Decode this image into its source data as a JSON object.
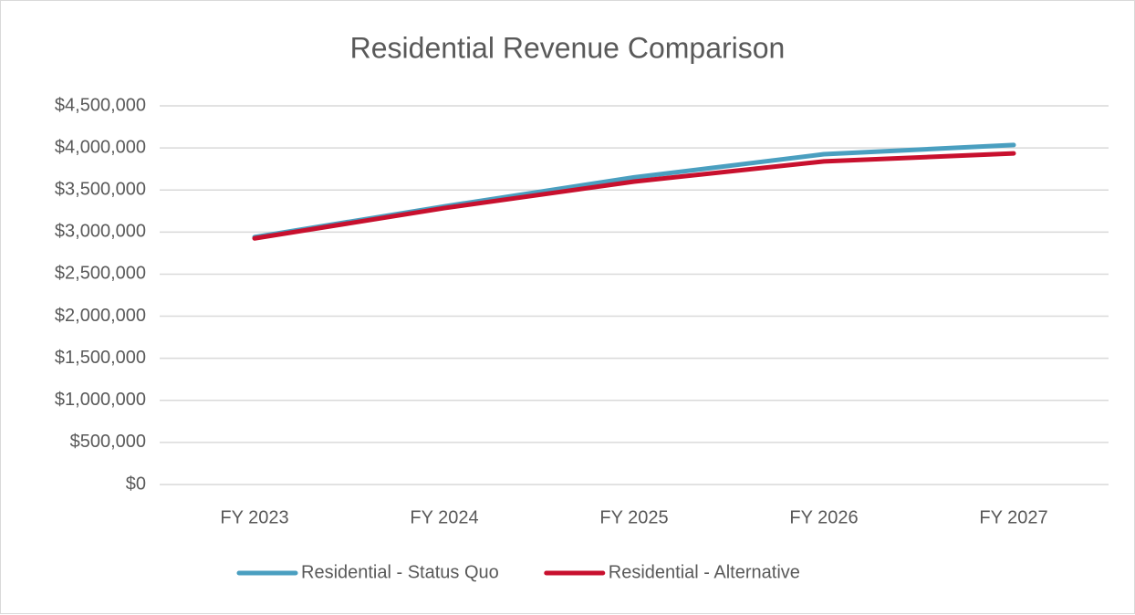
{
  "chart_data": {
    "type": "line",
    "title": "Residential Revenue Comparison",
    "categories": [
      "FY 2023",
      "FY 2024",
      "FY 2025",
      "FY 2026",
      "FY 2027"
    ],
    "series": [
      {
        "name": "Residential - Status Quo",
        "color": "#4a9fc0",
        "values": [
          2940000,
          3305000,
          3650000,
          3925000,
          4035000
        ]
      },
      {
        "name": "Residential - Alternative",
        "color": "#c8102e",
        "values": [
          2925000,
          3285000,
          3600000,
          3840000,
          3935000
        ]
      }
    ],
    "ylim": [
      0,
      4500000
    ],
    "yticks": [
      {
        "value": 0,
        "label": "$0"
      },
      {
        "value": 500000,
        "label": "$500,000"
      },
      {
        "value": 1000000,
        "label": "$1,000,000"
      },
      {
        "value": 1500000,
        "label": "$1,500,000"
      },
      {
        "value": 2000000,
        "label": "$2,000,000"
      },
      {
        "value": 2500000,
        "label": "$2,500,000"
      },
      {
        "value": 3000000,
        "label": "$3,000,000"
      },
      {
        "value": 3500000,
        "label": "$3,500,000"
      },
      {
        "value": 4000000,
        "label": "$4,000,000"
      },
      {
        "value": 4500000,
        "label": "$4,500,000"
      }
    ],
    "grid": true,
    "legend": "bottom"
  }
}
